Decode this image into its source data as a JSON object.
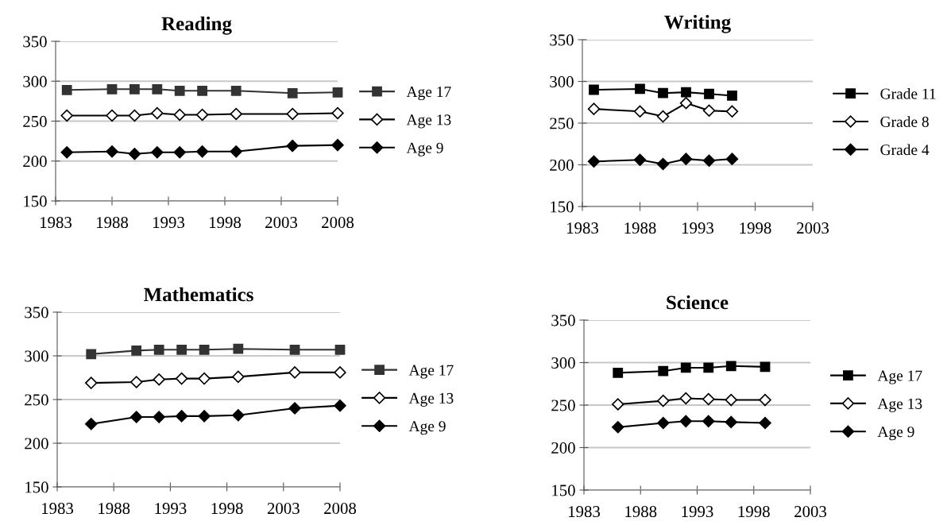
{
  "chart_data": [
    {
      "type": "line",
      "title": "Reading",
      "xlim": [
        1983,
        2008
      ],
      "xticks": [
        1983,
        1988,
        1993,
        1998,
        2003,
        2008
      ],
      "ylim": [
        150,
        350
      ],
      "yticks": [
        150,
        200,
        250,
        300,
        350
      ],
      "grid": "y",
      "legend": "right",
      "series": [
        {
          "name": "Age 17",
          "color": "#333333",
          "marker": "square",
          "x": [
            1984,
            1988,
            1990,
            1992,
            1994,
            1996,
            1999,
            2004,
            2008
          ],
          "values": [
            289,
            290,
            290,
            290,
            288,
            288,
            288,
            285,
            286
          ]
        },
        {
          "name": "Age 13",
          "color": "#000000",
          "marker": "diamond",
          "x": [
            1984,
            1988,
            1990,
            1992,
            1994,
            1996,
            1999,
            2004,
            2008
          ],
          "values": [
            257,
            257,
            257,
            260,
            258,
            258,
            259,
            259,
            260
          ]
        },
        {
          "name": "Age 9",
          "color": "#000000",
          "marker": "diamond",
          "x": [
            1984,
            1988,
            1990,
            1992,
            1994,
            1996,
            1999,
            2004,
            2008
          ],
          "values": [
            211,
            212,
            209,
            211,
            211,
            212,
            212,
            219,
            220
          ]
        }
      ]
    },
    {
      "type": "line",
      "title": "Writing",
      "xlim": [
        1983,
        2003
      ],
      "xticks": [
        1983,
        1988,
        1993,
        1998,
        2003
      ],
      "ylim": [
        150,
        350
      ],
      "yticks": [
        150,
        200,
        250,
        300,
        350
      ],
      "grid": "y",
      "legend": "right",
      "series": [
        {
          "name": "Grade 11",
          "color": "#000000",
          "marker": "square",
          "x": [
            1984,
            1988,
            1990,
            1992,
            1994,
            1996
          ],
          "values": [
            290,
            291,
            286,
            287,
            285,
            283
          ]
        },
        {
          "name": "Grade 8",
          "color": "#000000",
          "marker": "diamond",
          "x": [
            1984,
            1988,
            1990,
            1992,
            1994,
            1996
          ],
          "values": [
            267,
            264,
            258,
            274,
            265,
            264
          ]
        },
        {
          "name": "Grade 4",
          "color": "#000000",
          "marker": "diamond",
          "x": [
            1984,
            1988,
            1990,
            1992,
            1994,
            1996
          ],
          "values": [
            204,
            206,
            201,
            207,
            205,
            207
          ]
        }
      ]
    },
    {
      "type": "line",
      "title": "Mathematics",
      "xlim": [
        1983,
        2008
      ],
      "xticks": [
        1983,
        1988,
        1993,
        1998,
        2003,
        2008
      ],
      "ylim": [
        150,
        350
      ],
      "yticks": [
        150,
        200,
        250,
        300,
        350
      ],
      "grid": "y",
      "legend": "right",
      "series": [
        {
          "name": "Age 17",
          "color": "#333333",
          "marker": "square",
          "x": [
            1986,
            1990,
            1992,
            1994,
            1996,
            1999,
            2004,
            2008
          ],
          "values": [
            302,
            306,
            307,
            307,
            307,
            308,
            307,
            307
          ]
        },
        {
          "name": "Age 13",
          "color": "#000000",
          "marker": "diamond",
          "x": [
            1986,
            1990,
            1992,
            1994,
            1996,
            1999,
            2004,
            2008
          ],
          "values": [
            269,
            270,
            273,
            274,
            274,
            276,
            281,
            281
          ]
        },
        {
          "name": "Age 9",
          "color": "#000000",
          "marker": "diamond",
          "x": [
            1986,
            1990,
            1992,
            1994,
            1996,
            1999,
            2004,
            2008
          ],
          "values": [
            222,
            230,
            230,
            231,
            231,
            232,
            240,
            243
          ]
        }
      ]
    },
    {
      "type": "line",
      "title": "Science",
      "xlim": [
        1983,
        2003
      ],
      "xticks": [
        1983,
        1988,
        1993,
        1998,
        2003
      ],
      "ylim": [
        150,
        350
      ],
      "yticks": [
        150,
        200,
        250,
        300,
        350
      ],
      "grid": "y",
      "legend": "right",
      "series": [
        {
          "name": "Age 17",
          "color": "#000000",
          "marker": "square",
          "x": [
            1986,
            1990,
            1992,
            1994,
            1996,
            1999
          ],
          "values": [
            288,
            290,
            294,
            294,
            296,
            295
          ]
        },
        {
          "name": "Age 13",
          "color": "#000000",
          "marker": "diamond",
          "x": [
            1986,
            1990,
            1992,
            1994,
            1996,
            1999
          ],
          "values": [
            251,
            255,
            258,
            257,
            256,
            256
          ]
        },
        {
          "name": "Age 9",
          "color": "#000000",
          "marker": "diamond",
          "x": [
            1986,
            1990,
            1992,
            1994,
            1996,
            1999
          ],
          "values": [
            224,
            229,
            231,
            231,
            230,
            229
          ]
        }
      ]
    }
  ]
}
